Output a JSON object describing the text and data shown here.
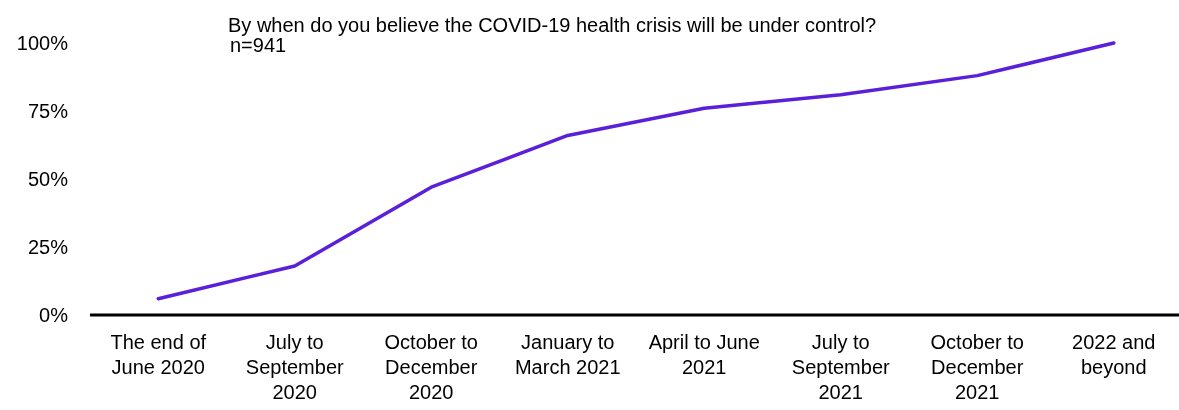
{
  "chart_data": {
    "type": "line",
    "title": "By when do you believe the COVID-19 health crisis will be under control?",
    "annotations": [
      "n=941"
    ],
    "categories": [
      "The end of June 2020",
      "July to September 2020",
      "October to December 2020",
      "January to March 2021",
      "April to June 2021",
      "July to September 2021",
      "October to December 2021",
      "2022 and beyond"
    ],
    "series": [
      {
        "color": "#5a1fd9",
        "values": [
          6,
          18,
          47,
          66,
          76,
          81,
          88,
          100
        ]
      }
    ],
    "ylim": [
      0,
      100
    ],
    "yticks": [
      {
        "value": 0,
        "label": "0%"
      },
      {
        "value": 25,
        "label": "25%"
      },
      {
        "value": 50,
        "label": "50%"
      },
      {
        "value": 75,
        "label": "75%"
      },
      {
        "value": 100,
        "label": "100%"
      }
    ],
    "grid": false,
    "marker": "none",
    "line_style": "solid"
  }
}
